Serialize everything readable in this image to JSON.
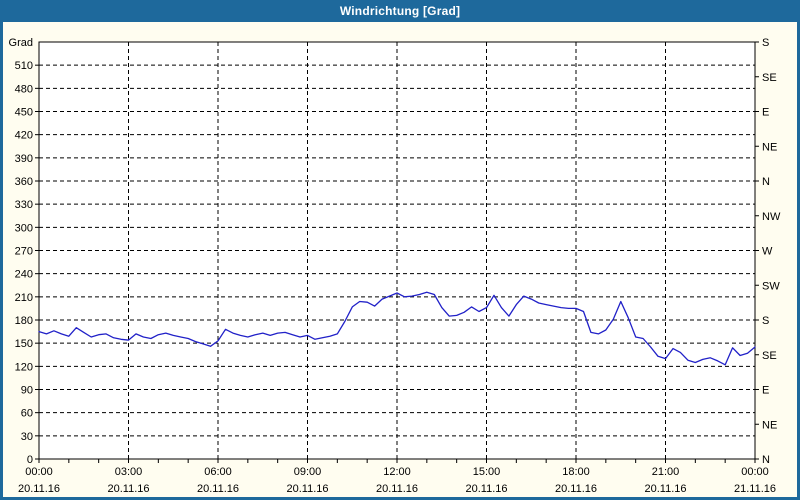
{
  "window": {
    "title": "Windrichtung [Grad]"
  },
  "colors": {
    "frame": "#1e699c",
    "titlebar_bg": "#1e699c",
    "titlebar_text": "#ffffff",
    "content_bg": "#fffdf0",
    "plot_bg": "#ffffff",
    "grid": "#000000",
    "axis": "#000000",
    "label": "#000000",
    "line": "#2121c8"
  },
  "chart_data": {
    "type": "line",
    "title": "Windrichtung [Grad]",
    "ylabel_left": "Grad",
    "ylim": [
      0,
      540
    ],
    "xlim_hours": [
      0,
      24
    ],
    "grid": "dashed",
    "legend": "none",
    "y_left_ticks": [
      0,
      30,
      60,
      90,
      120,
      150,
      180,
      210,
      240,
      270,
      300,
      330,
      360,
      390,
      420,
      450,
      480,
      510
    ],
    "y_right_ticks": [
      {
        "value": 540,
        "label": "S"
      },
      {
        "value": 495,
        "label": "SE"
      },
      {
        "value": 450,
        "label": "E"
      },
      {
        "value": 405,
        "label": "NE"
      },
      {
        "value": 360,
        "label": "N"
      },
      {
        "value": 315,
        "label": "NW"
      },
      {
        "value": 270,
        "label": "W"
      },
      {
        "value": 225,
        "label": "SW"
      },
      {
        "value": 180,
        "label": "S"
      },
      {
        "value": 135,
        "label": "SE"
      },
      {
        "value": 90,
        "label": "E"
      },
      {
        "value": 45,
        "label": "NE"
      },
      {
        "value": 0,
        "label": "N"
      }
    ],
    "x_ticks": [
      {
        "hour": 0,
        "time": "00:00",
        "date": "20.11.16"
      },
      {
        "hour": 3,
        "time": "03:00",
        "date": "20.11.16"
      },
      {
        "hour": 6,
        "time": "06:00",
        "date": "20.11.16"
      },
      {
        "hour": 9,
        "time": "09:00",
        "date": "20.11.16"
      },
      {
        "hour": 12,
        "time": "12:00",
        "date": "20.11.16"
      },
      {
        "hour": 15,
        "time": "15:00",
        "date": "20.11.16"
      },
      {
        "hour": 18,
        "time": "18:00",
        "date": "20.11.16"
      },
      {
        "hour": 21,
        "time": "21:00",
        "date": "20.11.16"
      },
      {
        "hour": 24,
        "time": "00:00",
        "date": "21.11.16"
      }
    ],
    "minor_x_tick_every_hours": 1,
    "series": [
      {
        "name": "Windrichtung",
        "x_hours": [
          0,
          0.25,
          0.5,
          0.75,
          1,
          1.25,
          1.5,
          1.75,
          2,
          2.25,
          2.5,
          2.75,
          3,
          3.25,
          3.5,
          3.75,
          4,
          4.25,
          4.5,
          4.75,
          5,
          5.25,
          5.5,
          5.75,
          6,
          6.25,
          6.5,
          6.75,
          7,
          7.25,
          7.5,
          7.75,
          8,
          8.25,
          8.5,
          8.75,
          9,
          9.25,
          9.5,
          9.75,
          10,
          10.25,
          10.5,
          10.75,
          11,
          11.25,
          11.5,
          11.75,
          12,
          12.25,
          12.5,
          12.75,
          13,
          13.25,
          13.5,
          13.75,
          14,
          14.25,
          14.5,
          14.75,
          15,
          15.25,
          15.5,
          15.75,
          16,
          16.25,
          16.5,
          16.75,
          17,
          17.25,
          17.5,
          17.75,
          18,
          18.25,
          18.5,
          18.75,
          19,
          19.25,
          19.5,
          19.75,
          20,
          20.25,
          20.5,
          20.75,
          21,
          21.25,
          21.5,
          21.75,
          22,
          22.25,
          22.5,
          22.75,
          23,
          23.25,
          23.5,
          23.75,
          24
        ],
        "values": [
          165,
          162,
          166,
          162,
          159,
          170,
          164,
          158,
          161,
          162,
          157,
          155,
          154,
          162,
          158,
          156,
          161,
          163,
          160,
          158,
          156,
          152,
          149,
          146,
          153,
          168,
          163,
          160,
          158,
          161,
          163,
          160,
          163,
          164,
          161,
          158,
          160,
          155,
          157,
          159,
          162,
          178,
          197,
          204,
          203,
          198,
          207,
          211,
          215,
          210,
          211,
          213,
          216,
          213,
          196,
          185,
          186,
          190,
          197,
          191,
          196,
          212,
          196,
          185,
          200,
          211,
          207,
          202,
          200,
          198,
          196,
          195,
          195,
          191,
          164,
          162,
          167,
          181,
          204,
          183,
          158,
          156,
          145,
          133,
          130,
          143,
          138,
          128,
          125,
          129,
          131,
          127,
          122,
          144,
          134,
          137,
          145
        ]
      }
    ]
  }
}
